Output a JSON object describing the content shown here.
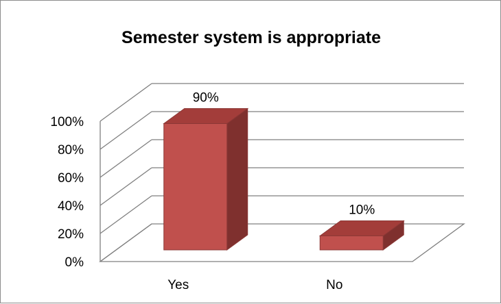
{
  "chart_data": {
    "type": "bar",
    "title": "Semester system is appropriate",
    "categories": [
      "Yes",
      "No"
    ],
    "values": [
      90,
      10
    ],
    "value_labels": [
      "90%",
      "10%"
    ],
    "ylim": [
      0,
      100
    ],
    "yticks": [
      0,
      20,
      40,
      60,
      80,
      100
    ],
    "ytick_labels": [
      "0%",
      "20%",
      "40%",
      "60%",
      "80%",
      "100%"
    ],
    "xlabel": "",
    "ylabel": "",
    "grid": true,
    "legend": "none",
    "style": "3d-column",
    "colors": {
      "bar_front": "#c0504d",
      "bar_side": "#7f302e",
      "bar_top": "#a33d3a",
      "bar_edge": "#8c3836",
      "grid": "#7f7f7f"
    }
  }
}
